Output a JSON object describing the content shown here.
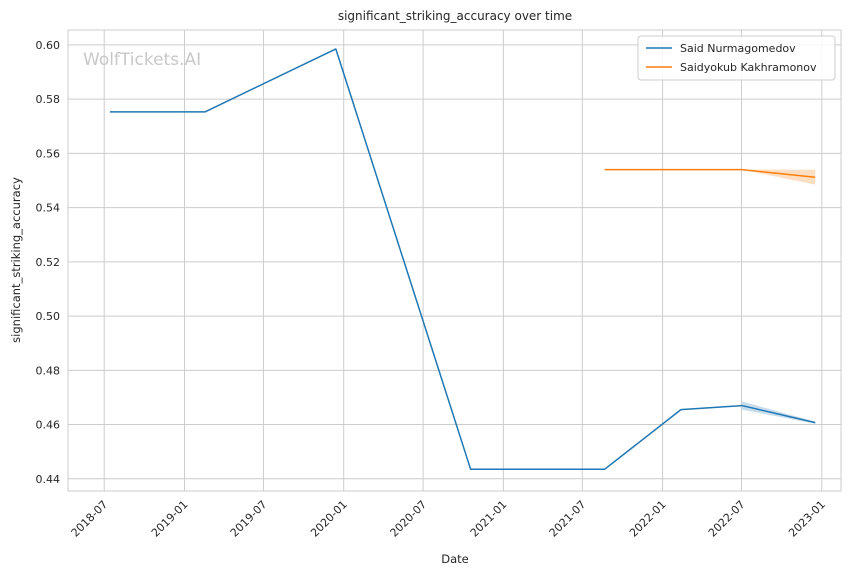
{
  "chart_data": {
    "type": "line",
    "title": "significant_striking_accuracy over time",
    "xlabel": "Date",
    "ylabel": "significant_striking_accuracy",
    "watermark": "WolfTickets.AI",
    "x_axis": {
      "scale": "time",
      "range": [
        "2018-04-09",
        "2023-02-14"
      ],
      "ticks": [
        "2018-07",
        "2019-01",
        "2019-07",
        "2020-01",
        "2020-07",
        "2021-01",
        "2021-07",
        "2022-01",
        "2022-07",
        "2023-01"
      ],
      "tick_rotation_deg": 45
    },
    "y_axis": {
      "range": [
        0.4355,
        0.6055
      ],
      "ticks": [
        "0.44",
        "0.46",
        "0.48",
        "0.50",
        "0.52",
        "0.54",
        "0.56",
        "0.58",
        "0.60"
      ]
    },
    "grid": true,
    "legend_position": "top-right",
    "series": [
      {
        "name": "Said Nurmagomedov",
        "color": "#1f77b4",
        "points": [
          {
            "x": "2018-07-14",
            "y": 0.5753
          },
          {
            "x": "2019-02-17",
            "y": 0.5753
          },
          {
            "x": "2019-12-14",
            "y": 0.5985
          },
          {
            "x": "2020-10-18",
            "y": 0.4435
          },
          {
            "x": "2021-08-21",
            "y": 0.4435
          },
          {
            "x": "2022-02-12",
            "y": 0.4655
          },
          {
            "x": "2022-07-02",
            "y": 0.467
          },
          {
            "x": "2022-12-17",
            "y": 0.4607
          }
        ],
        "band": [
          {
            "x": "2022-07-02",
            "lo": 0.4655,
            "hi": 0.4685
          },
          {
            "x": "2022-12-17",
            "lo": 0.4603,
            "hi": 0.4611
          }
        ]
      },
      {
        "name": "Saidyokub Kakhramonov",
        "color": "#ff7f0e",
        "points": [
          {
            "x": "2021-08-21",
            "y": 0.554
          },
          {
            "x": "2022-07-02",
            "y": 0.554
          },
          {
            "x": "2022-12-17",
            "y": 0.5512
          }
        ],
        "band": [
          {
            "x": "2022-07-02",
            "lo": 0.554,
            "hi": 0.554
          },
          {
            "x": "2022-12-17",
            "lo": 0.5485,
            "hi": 0.554
          }
        ]
      }
    ]
  }
}
